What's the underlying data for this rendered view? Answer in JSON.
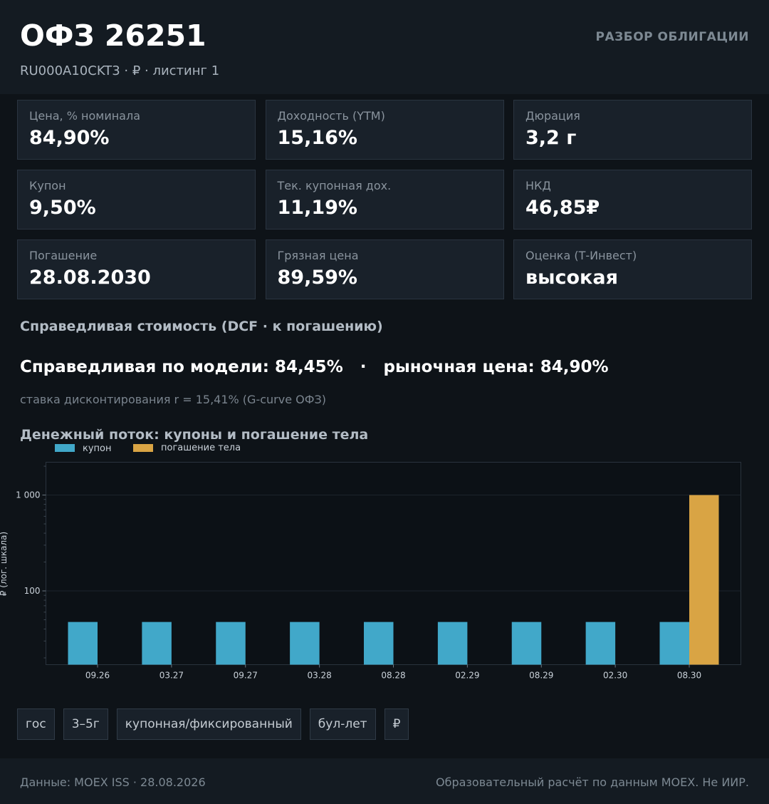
{
  "header": {
    "title": "ОФЗ 26251",
    "subtitle": "RU000A10CKT3  ·  ₽  ·  листинг 1",
    "badge": "РАЗБОР ОБЛИГАЦИИ"
  },
  "cards": [
    {
      "label": "Цена, % номинала",
      "value": "84,90%"
    },
    {
      "label": "Доходность (YTM)",
      "value": "15,16%"
    },
    {
      "label": "Дюрация",
      "value": "3,2 г"
    },
    {
      "label": "Купон",
      "value": "9,50%"
    },
    {
      "label": "Тек. купонная дох.",
      "value": "11,19%"
    },
    {
      "label": "НКД",
      "value": "46,85₽"
    },
    {
      "label": "Погашение",
      "value": "28.08.2030"
    },
    {
      "label": "Грязная цена",
      "value": "89,59%"
    },
    {
      "label": "Оценка (Т-Инвест)",
      "value": "высокая"
    }
  ],
  "fair_value": {
    "section_title": "Справедливая стоимость (DCF · к погашению)",
    "headline": "Справедливая по модели: 84,45%   ·   рыночная цена: 84,90%",
    "rate_note": "ставка дисконтирования r = 15,41% (G-curve ОФЗ)"
  },
  "cashflow_title": "Денежный поток: купоны и погашение тела",
  "chart_data": {
    "type": "bar",
    "categories": [
      "09.26",
      "03.27",
      "09.27",
      "03.28",
      "08.28",
      "02.29",
      "08.29",
      "02.30",
      "08.30"
    ],
    "series": [
      {
        "name": "купон",
        "color": "#41a8c9",
        "values": [
          47.4,
          47.4,
          47.4,
          47.4,
          47.4,
          47.4,
          47.4,
          47.4,
          47.4
        ]
      },
      {
        "name": "погашение тела",
        "color": "#d9a444",
        "values": [
          0,
          0,
          0,
          0,
          0,
          0,
          0,
          0,
          1000
        ]
      }
    ],
    "ylabel": "₽ (лог. шкала)",
    "yscale": "log",
    "yticks": [
      {
        "value": 100,
        "label": "100"
      },
      {
        "value": 1000,
        "label": "1 000"
      }
    ],
    "ylim": [
      17,
      2200
    ],
    "legend_position": "top-left",
    "grid": true
  },
  "tags": [
    "гос",
    "3–5г",
    "купонная/фиксированный",
    "бул-лет",
    "₽"
  ],
  "footer": {
    "left": "Данные: MOEX ISS · 28.08.2026",
    "right": "Образовательный расчёт по данным MOEX. Не ИИР."
  }
}
